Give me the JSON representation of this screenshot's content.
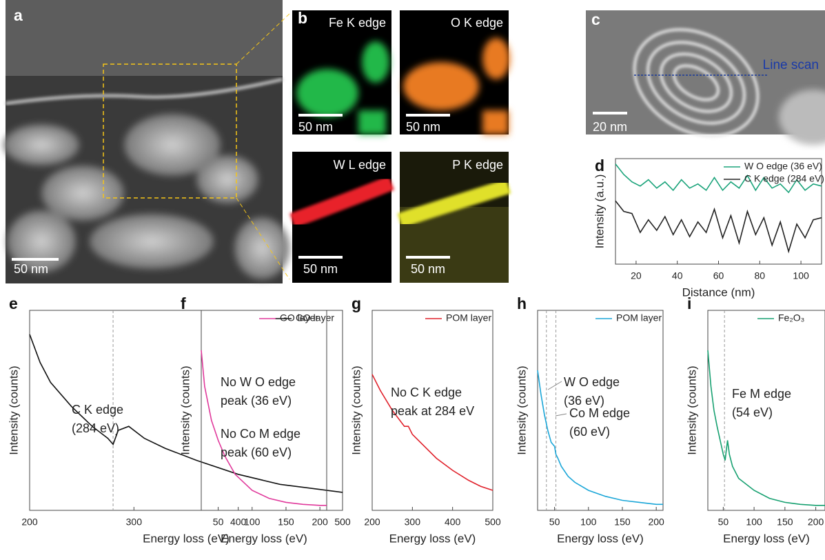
{
  "panels": {
    "a": {
      "label": "a",
      "scale": "50 nm"
    },
    "b": {
      "label": "b",
      "maps": [
        {
          "title": "Fe K edge",
          "scale": "50 nm"
        },
        {
          "title": "O K edge",
          "scale": "50 nm"
        },
        {
          "title": "W L edge",
          "scale": "50 nm"
        },
        {
          "title": "P K edge",
          "scale": "50 nm"
        }
      ]
    },
    "c": {
      "label": "c",
      "scale": "20 nm",
      "annotation": "Line scan"
    }
  },
  "chart_data": [
    {
      "type": "line",
      "label": "d",
      "xlabel": "Distance (nm)",
      "ylabel": "Intensity (a.u.)",
      "xlim": [
        10,
        110
      ],
      "ylim": [
        0,
        100
      ],
      "xticks": [
        20,
        40,
        60,
        80,
        100
      ],
      "legend": "upper right",
      "x": [
        10,
        14,
        18,
        22,
        26,
        30,
        34,
        38,
        42,
        46,
        50,
        54,
        58,
        62,
        66,
        70,
        74,
        78,
        82,
        86,
        90,
        94,
        98,
        102,
        106,
        110
      ],
      "series": [
        {
          "name": "W O edge (36 eV)",
          "color": "#1aa37a",
          "values": [
            95,
            85,
            78,
            74,
            80,
            72,
            78,
            70,
            80,
            72,
            76,
            70,
            82,
            70,
            78,
            72,
            84,
            70,
            82,
            72,
            76,
            68,
            80,
            70,
            76,
            74
          ]
        },
        {
          "name": "C K edge (284 eV)",
          "color": "#222222",
          "values": [
            60,
            50,
            48,
            30,
            42,
            32,
            45,
            28,
            42,
            26,
            40,
            30,
            52,
            25,
            46,
            20,
            50,
            28,
            44,
            18,
            40,
            12,
            38,
            25,
            42,
            44
          ]
        }
      ]
    },
    {
      "type": "line",
      "label": "e",
      "xlabel": "Energy loss (eV)",
      "ylabel": "Intensity (counts)",
      "xlim": [
        200,
        500
      ],
      "ylim": [
        0,
        100
      ],
      "xticks": [
        200,
        300,
        400,
        500
      ],
      "legend": "upper right",
      "vlines": [
        280
      ],
      "annotations": [
        "C K edge",
        "(284 eV)"
      ],
      "x": [
        200,
        210,
        220,
        240,
        260,
        275,
        280,
        285,
        295,
        310,
        330,
        360,
        400,
        440,
        470,
        500
      ],
      "series": [
        {
          "name": "GO layer",
          "color": "#111111",
          "values": [
            88,
            74,
            64,
            52,
            42,
            36,
            33,
            40,
            42,
            36,
            31,
            25,
            18,
            13,
            11,
            9
          ]
        }
      ]
    },
    {
      "type": "line",
      "label": "f",
      "xlabel": "Energy loss (eV)",
      "ylabel": "Intensity (counts)",
      "xlim": [
        25,
        210
      ],
      "ylim": [
        0,
        100
      ],
      "xticks": [
        50,
        100,
        150,
        200
      ],
      "legend": "upper right",
      "annotations": [
        "No W O edge",
        "peak (36 eV)",
        "No Co M edge",
        "peak (60 eV)"
      ],
      "x": [
        25,
        30,
        40,
        50,
        60,
        75,
        100,
        125,
        150,
        175,
        200,
        210
      ],
      "series": [
        {
          "name": "GO layer",
          "color": "#e0399b",
          "values": [
            80,
            62,
            45,
            35,
            27,
            18,
            10,
            6,
            4,
            3,
            2.5,
            2.5
          ]
        }
      ]
    },
    {
      "type": "line",
      "label": "g",
      "xlabel": "Energy loss (eV)",
      "ylabel": "Intensity (counts)",
      "xlim": [
        200,
        500
      ],
      "ylim": [
        0,
        100
      ],
      "xticks": [
        200,
        300,
        400,
        500
      ],
      "legend": "upper right",
      "annotations": [
        "No C K edge",
        "peak at 284 eV"
      ],
      "x": [
        200,
        220,
        250,
        280,
        290,
        300,
        330,
        360,
        400,
        440,
        470,
        500
      ],
      "series": [
        {
          "name": "POM layer",
          "color": "#e0202a",
          "values": [
            68,
            60,
            50,
            42,
            42,
            38,
            32,
            26,
            20,
            15,
            12,
            10
          ]
        }
      ]
    },
    {
      "type": "line",
      "label": "h",
      "xlabel": "Energy loss (eV)",
      "ylabel": "Intensity (counts)",
      "xlim": [
        25,
        210
      ],
      "ylim": [
        0,
        100
      ],
      "xticks": [
        50,
        100,
        150,
        200
      ],
      "legend": "upper right",
      "vlines": [
        38,
        52
      ],
      "annotations": [
        "W O edge",
        "(36 eV)",
        "Co M edge",
        "(60 eV)"
      ],
      "x": [
        25,
        30,
        35,
        40,
        45,
        50,
        52,
        55,
        60,
        70,
        80,
        100,
        125,
        150,
        175,
        200,
        210
      ],
      "series": [
        {
          "name": "POM layer",
          "color": "#1aa6d8",
          "values": [
            70,
            58,
            48,
            40,
            34,
            32,
            28,
            26,
            22,
            17,
            14,
            10,
            7,
            5,
            4,
            3,
            3
          ]
        }
      ]
    },
    {
      "type": "line",
      "label": "i",
      "xlabel": "Energy loss (eV)",
      "ylabel": "Intensity (counts)",
      "xlim": [
        25,
        215
      ],
      "ylim": [
        0,
        100
      ],
      "xticks": [
        50,
        100,
        150,
        200
      ],
      "legend": "upper right",
      "vlines": [
        52
      ],
      "annotations": [
        "Fe M edge",
        "(54 eV)"
      ],
      "x": [
        25,
        30,
        35,
        40,
        45,
        50,
        53,
        55,
        57,
        60,
        65,
        75,
        100,
        125,
        150,
        175,
        200,
        215
      ],
      "series": [
        {
          "name": "Fe₂O₃",
          "color": "#16a070",
          "values": [
            80,
            62,
            50,
            42,
            35,
            28,
            25,
            30,
            35,
            28,
            22,
            16,
            10,
            6,
            4,
            3,
            2.5,
            2.5
          ]
        }
      ]
    }
  ]
}
